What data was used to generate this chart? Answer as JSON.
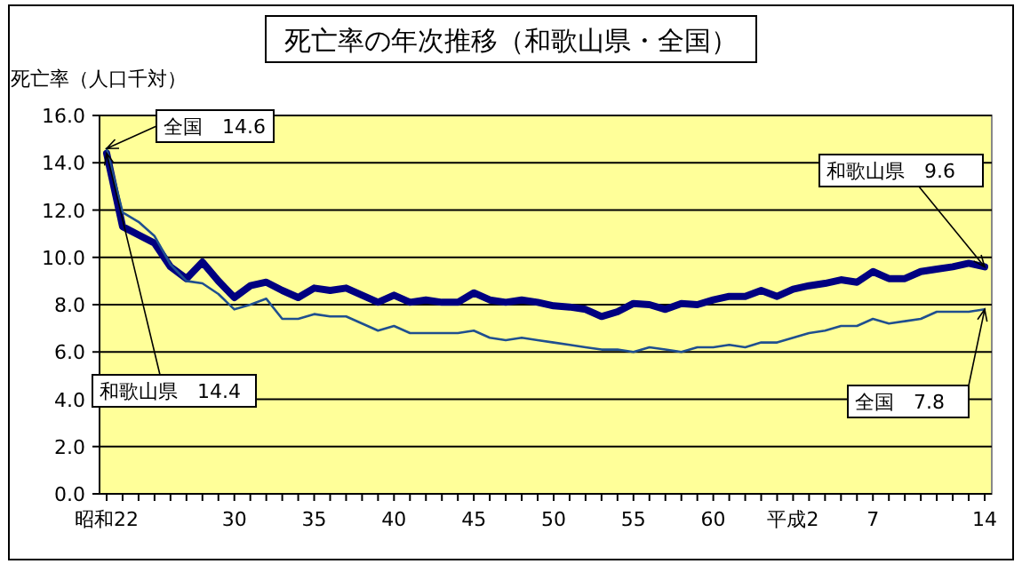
{
  "chart_data": {
    "type": "line",
    "title": "死亡率の年次推移（和歌山県・全国）",
    "ylabel": "死亡率（人口千対）",
    "categories": [
      "昭和22",
      null,
      null,
      null,
      null,
      null,
      null,
      null,
      "30",
      null,
      null,
      null,
      null,
      "35",
      null,
      null,
      null,
      null,
      "40",
      null,
      null,
      null,
      null,
      "45",
      null,
      null,
      null,
      null,
      "50",
      null,
      null,
      null,
      null,
      "55",
      null,
      null,
      null,
      null,
      "60",
      null,
      null,
      null,
      null,
      "平成2",
      null,
      null,
      null,
      null,
      "7",
      null,
      null,
      null,
      null,
      null,
      null,
      "14"
    ],
    "series": [
      {
        "color": "#000080",
        "values": [
          14.4,
          11.3,
          10.95,
          10.6,
          9.6,
          9.1,
          9.8,
          9.0,
          8.3,
          8.8,
          8.95,
          8.6,
          8.3,
          8.7,
          8.6,
          8.7,
          8.4,
          8.1,
          8.4,
          8.1,
          8.2,
          8.1,
          8.1,
          8.5,
          8.2,
          8.1,
          8.2,
          8.1,
          7.95,
          7.9,
          7.8,
          7.5,
          7.7,
          8.05,
          8.0,
          7.8,
          8.05,
          8.0,
          8.2,
          8.35,
          8.35,
          8.6,
          8.35,
          8.65,
          8.8,
          8.9,
          9.05,
          8.95,
          9.4,
          9.1,
          9.1,
          9.4,
          9.5,
          9.6,
          9.75,
          9.6
        ]
      },
      {
        "color": "#1f4f8f",
        "values": [
          14.6,
          11.9,
          11.5,
          10.9,
          9.7,
          9.0,
          8.9,
          8.45,
          7.8,
          8.0,
          8.25,
          7.4,
          7.4,
          7.6,
          7.5,
          7.5,
          7.2,
          6.9,
          7.1,
          6.8,
          6.8,
          6.8,
          6.8,
          6.9,
          6.6,
          6.5,
          6.6,
          6.5,
          6.4,
          6.3,
          6.2,
          6.1,
          6.1,
          6.0,
          6.2,
          6.1,
          6.0,
          6.2,
          6.2,
          6.3,
          6.2,
          6.4,
          6.4,
          6.6,
          6.8,
          6.9,
          7.1,
          7.1,
          7.4,
          7.2,
          7.3,
          7.4,
          7.7,
          7.7,
          7.7,
          7.8
        ]
      }
    ],
    "ylim": [
      0,
      16
    ],
    "yticks": [
      {
        "value": 0,
        "label": "0.0"
      },
      {
        "value": 2,
        "label": "2.0"
      },
      {
        "value": 4,
        "label": "4.0"
      },
      {
        "value": 6,
        "label": "6.0"
      },
      {
        "value": 8,
        "label": "8.0"
      },
      {
        "value": 10,
        "label": "10.0"
      },
      {
        "value": 12,
        "label": "12.0"
      },
      {
        "value": 14,
        "label": "14.0"
      },
      {
        "value": 16,
        "label": "16.0"
      }
    ],
    "grid": "y",
    "marker": "none",
    "line_style": "solid",
    "annotations": [
      {
        "text": "全国　14.6",
        "x": "昭和22",
        "y": 14.6
      },
      {
        "text": "和歌山県　14.4",
        "x": "昭和22",
        "y": 14.4
      },
      {
        "text": "和歌山県　9.6",
        "x": "14",
        "y": 9.6
      },
      {
        "text": "全国　7.8",
        "x": "14",
        "y": 7.8
      }
    ]
  }
}
